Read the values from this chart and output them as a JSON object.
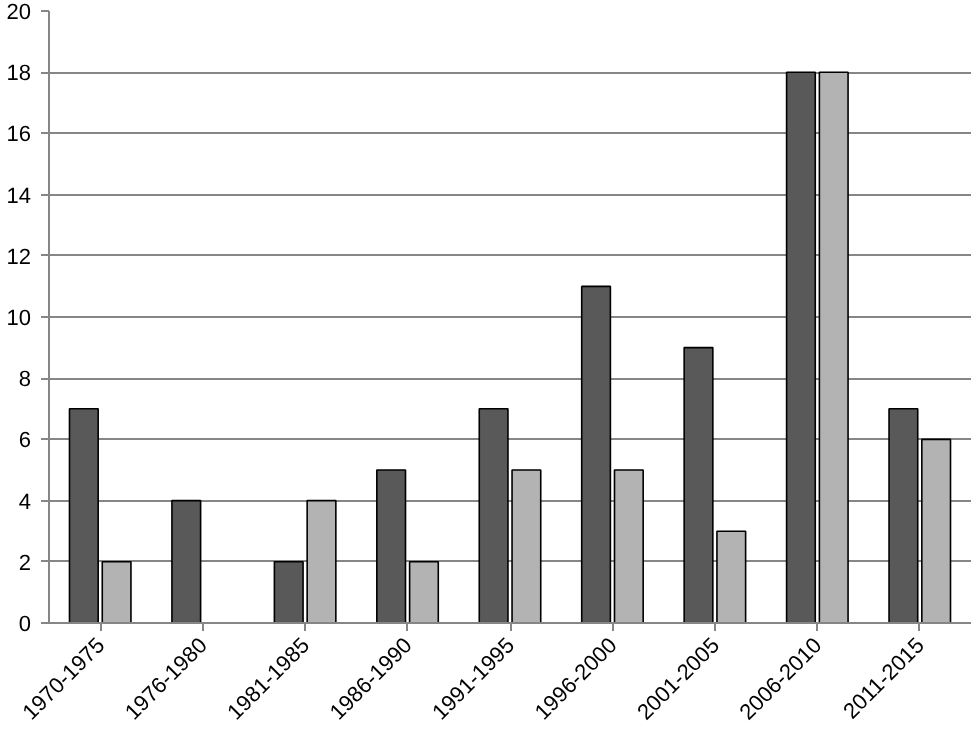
{
  "chart_data": {
    "type": "bar",
    "categories": [
      "1970-1975",
      "1976-1980",
      "1981-1985",
      "1986-1990",
      "1991-1995",
      "1996-2000",
      "2001-2005",
      "2006-2010",
      "2011-2015"
    ],
    "series": [
      {
        "color": "#595959",
        "values": [
          7,
          4,
          2,
          5,
          7,
          11,
          9,
          18,
          7
        ]
      },
      {
        "color": "#b3b3b3",
        "values": [
          2,
          null,
          4,
          2,
          5,
          5,
          3,
          18,
          6
        ]
      }
    ],
    "ylim": [
      0,
      20
    ],
    "yticks": [
      0,
      2,
      4,
      6,
      8,
      10,
      12,
      14,
      16,
      18,
      20
    ],
    "grid": "y"
  }
}
